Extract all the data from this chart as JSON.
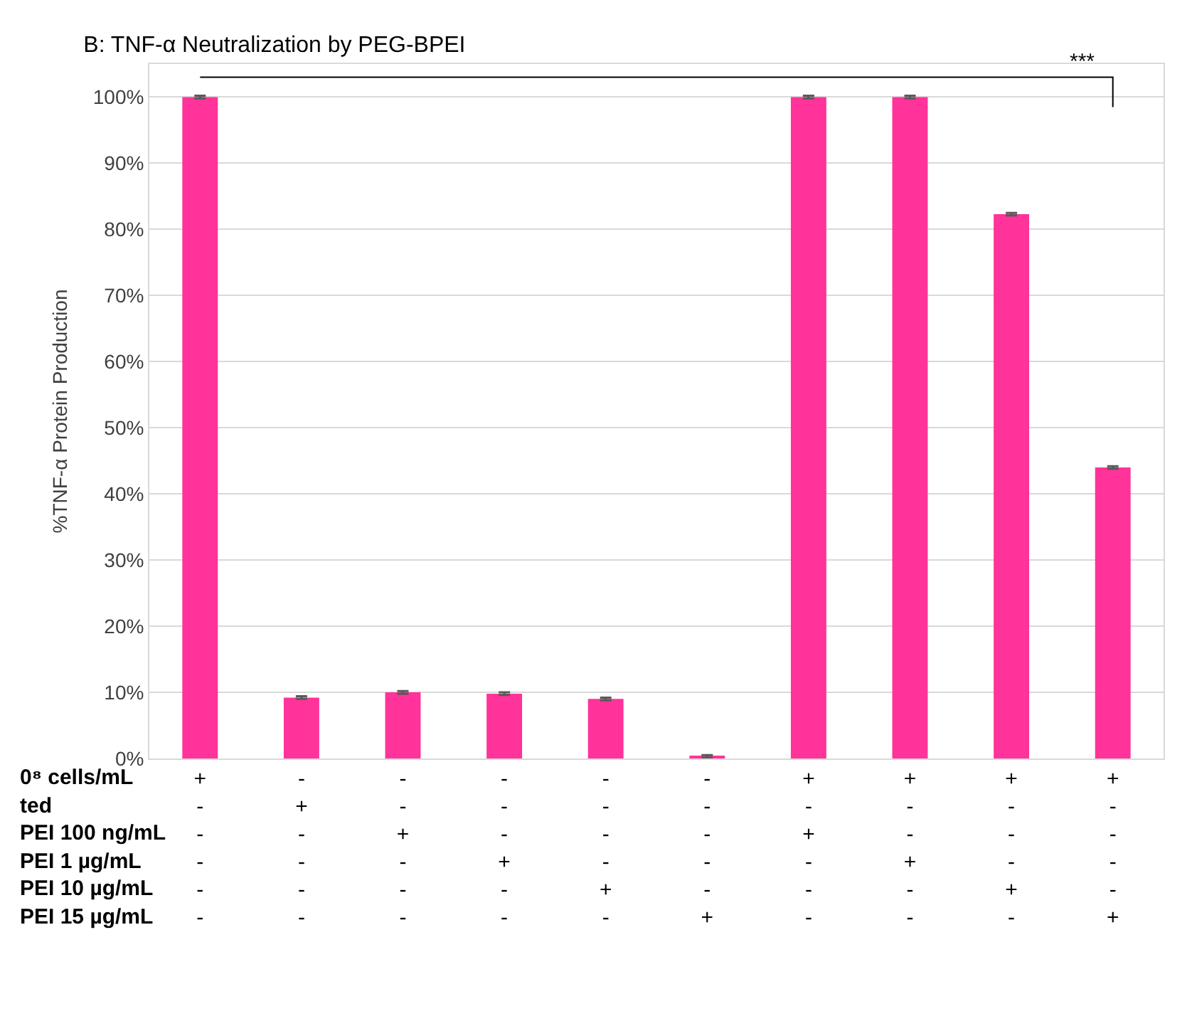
{
  "chart_data": {
    "type": "bar",
    "title": "B: TNF-α Neutralization by PEG-BPEI",
    "ylabel": "%TNF-α Protein Production",
    "categories": [
      "+\n-\n-\n-\n-\n-",
      "-\n+\n-\n-\n-\n-",
      "-\n-\n+\n-\n-\n-",
      "-\n-\n-\n+\n-\n-",
      "-\n-\n-\n-\n+\n-",
      "-\n-\n-\n-\n-\n+",
      "+\n-\n+\n-\n-\n-",
      "+\n-\n-\n+\n-\n-",
      "+\n-\n-\n-\n+\n-",
      "+\n-\n-\n-\n-\n+"
    ],
    "series": [
      {
        "color": "#ff3399",
        "values": [
          100,
          9.2,
          10.0,
          9.8,
          9.0,
          0.3,
          100,
          100,
          82.3,
          44.0
        ],
        "errors": [
          0.2,
          0.2,
          0.2,
          0.2,
          0.2,
          0.2,
          0.2,
          0.2,
          0.2,
          0.2
        ]
      }
    ],
    "ylim": [
      0,
      105
    ],
    "yticks": [
      {
        "value": 0,
        "label": "0%"
      },
      {
        "value": 10,
        "label": "10%"
      },
      {
        "value": 20,
        "label": "20%"
      },
      {
        "value": 30,
        "label": "30%"
      },
      {
        "value": 40,
        "label": "40%"
      },
      {
        "value": 50,
        "label": "50%"
      },
      {
        "value": 60,
        "label": "60%"
      },
      {
        "value": 70,
        "label": "70%"
      },
      {
        "value": 80,
        "label": "80%"
      },
      {
        "value": 90,
        "label": "90%"
      },
      {
        "value": 100,
        "label": "100%"
      }
    ],
    "grid": "y",
    "annotations": [
      "0⁸ cells/mL",
      "ted",
      "PEI 100 ng/mL",
      "PEI 1 µg/mL",
      "PEI 10 µg/mL",
      "PEI 15 µg/mL",
      "***"
    ]
  }
}
